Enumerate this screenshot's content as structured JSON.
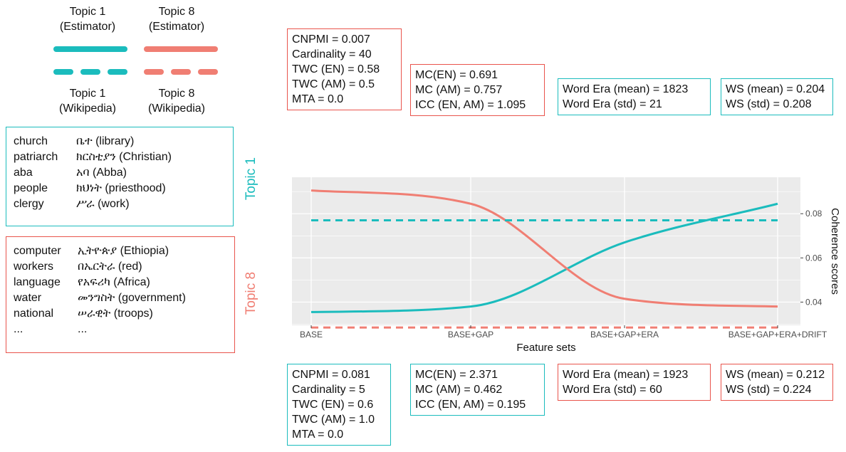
{
  "legend": {
    "est1": [
      "Topic 1",
      "(Estimator)"
    ],
    "est8": [
      "Topic 8",
      "(Estimator)"
    ],
    "wiki1": [
      "Topic 1",
      "(Wikipedia)"
    ],
    "wiki8": [
      "Topic 8",
      "(Wikipedia)"
    ]
  },
  "colors": {
    "topic1": "#1bbcbd",
    "topic8": "#f07e73",
    "panel": "#ebebeb",
    "grid": "#ffffff"
  },
  "topic1_words": [
    [
      "church",
      "ቤተ (library)"
    ],
    [
      "patriarch",
      "ክርስቲያን (Christian)"
    ],
    [
      "aba",
      "አባ (Abba)"
    ],
    [
      "people",
      "ክህነት (priesthood)"
    ],
    [
      "clergy",
      "ሥራ (work)"
    ]
  ],
  "topic8_words": [
    [
      "computer",
      "ኢትዮጵያ (Ethiopia)"
    ],
    [
      "workers",
      "በኤርትራ (red)"
    ],
    [
      "language",
      "የአፍሪካ  (Africa)"
    ],
    [
      "water",
      "መንግስት (government)"
    ],
    [
      "national",
      "ሠራዊት (troops)"
    ],
    [
      "...",
      "..."
    ]
  ],
  "side_labels": {
    "topic1": "Topic 1",
    "topic8": "Topic 8"
  },
  "top_boxes": [
    [
      "CNPMI = 0.007",
      "Cardinality = 40",
      "TWC (EN) = 0.58",
      "TWC (AM) = 0.5",
      "MTA = 0.0"
    ],
    [
      "MC(EN) = 0.691",
      "MC (AM) = 0.757",
      "ICC (EN, AM) = 1.095"
    ],
    [
      "Word Era (mean) = 1823",
      "Word Era (std) = 21"
    ],
    [
      "WS (mean) = 0.204",
      "WS (std) = 0.208"
    ]
  ],
  "bottom_boxes": [
    [
      "CNPMI = 0.081",
      "Cardinality = 5",
      "TWC (EN) = 0.6",
      "TWC (AM) = 1.0",
      "MTA = 0.0"
    ],
    [
      "MC(EN) = 2.371",
      "MC (AM) = 0.462",
      "ICC (EN, AM) = 0.195"
    ],
    [
      "Word Era (mean) = 1923",
      "Word Era (std) = 60"
    ],
    [
      "WS (mean) = 0.212",
      "WS (std) = 0.224"
    ]
  ],
  "chart_data": {
    "type": "line",
    "categories": [
      "BASE",
      "BASE+GAP",
      "BASE+GAP+ERA",
      "BASE+GAP+ERA+DRIFT"
    ],
    "xlabel": "Feature sets",
    "ylabel": "Coherence scores",
    "ylim": [
      0.0295,
      0.0965
    ],
    "yticks": [
      0.04,
      0.06,
      0.08
    ],
    "ytick_labels": [
      "0.04",
      "0.06",
      "0.08"
    ],
    "y_axis_position": "right",
    "grid": true,
    "series": [
      {
        "values": [
          0.0355,
          0.038,
          0.067,
          0.0845
        ],
        "color": "#1bbcbd",
        "style": "solid"
      },
      {
        "values": [
          0.0905,
          0.0845,
          0.0415,
          0.038
        ],
        "color": "#f07e73",
        "style": "solid"
      },
      {
        "values": [
          0.077,
          0.077,
          0.077,
          0.077
        ],
        "color": "#1bbcbd",
        "style": "dashed"
      },
      {
        "values": [
          0.0285,
          0.0285,
          0.0285,
          0.0285
        ],
        "color": "#f07e73",
        "style": "dashed"
      }
    ]
  }
}
